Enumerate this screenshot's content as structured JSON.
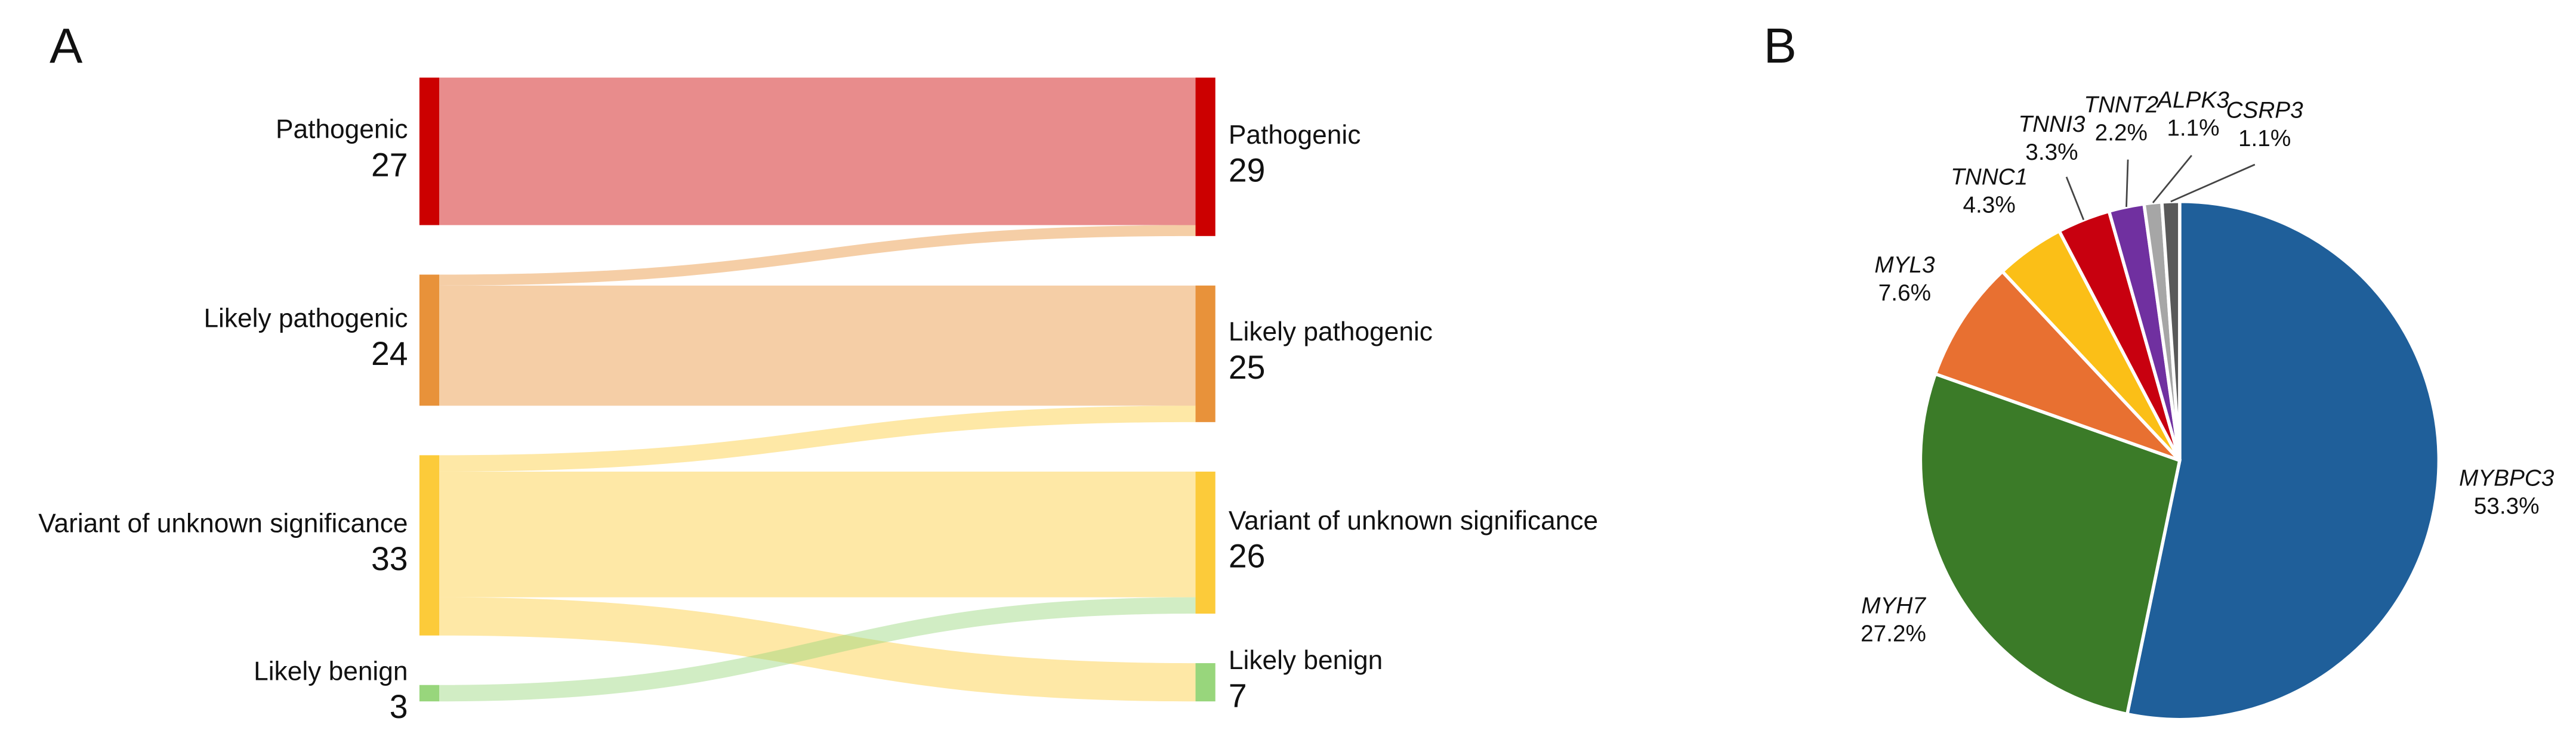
{
  "chart_data": [
    {
      "type": "sankey",
      "panel_label": "A",
      "nodes": {
        "left": [
          {
            "name": "Pathogenic",
            "value": 27,
            "color": "#cc0000"
          },
          {
            "name": "Likely pathogenic",
            "value": 24,
            "color": "#e8923a"
          },
          {
            "name": "Variant of unknown significance",
            "value": 33,
            "color": "#fccb3a"
          },
          {
            "name": "Likely benign",
            "value": 3,
            "color": "#98d67c"
          }
        ],
        "right": [
          {
            "name": "Pathogenic",
            "value": 29,
            "color": "#cc0000"
          },
          {
            "name": "Likely pathogenic",
            "value": 25,
            "color": "#e8923a"
          },
          {
            "name": "Variant of unknown significance",
            "value": 26,
            "color": "#fccb3a"
          },
          {
            "name": "Likely benign",
            "value": 7,
            "color": "#98d67c"
          }
        ]
      },
      "links": [
        {
          "source": 0,
          "target": 0,
          "value": 27
        },
        {
          "source": 1,
          "target": 0,
          "value": 2
        },
        {
          "source": 1,
          "target": 1,
          "value": 22
        },
        {
          "source": 2,
          "target": 1,
          "value": 3
        },
        {
          "source": 2,
          "target": 2,
          "value": 23
        },
        {
          "source": 2,
          "target": 3,
          "value": 7
        },
        {
          "source": 3,
          "target": 2,
          "value": 3
        }
      ]
    },
    {
      "type": "pie",
      "panel_label": "B",
      "categories": [
        "MYBPC3",
        "MYH7",
        "MYL3",
        "TNNC1",
        "TNNI3",
        "TNNT2",
        "ALPK3",
        "CSRP3"
      ],
      "values": [
        53.3,
        27.2,
        7.6,
        4.3,
        3.3,
        2.2,
        1.1,
        1.1
      ],
      "value_labels": [
        "53.3%",
        "27.2%",
        "7.6%",
        "4.3%",
        "3.3%",
        "2.2%",
        "1.1%",
        "1.1%"
      ],
      "colors": [
        "#1f5f9a",
        "#3b7b28",
        "#e87031",
        "#fbbf17",
        "#c8000f",
        "#7030a0",
        "#a6a6a6",
        "#595959"
      ]
    }
  ]
}
